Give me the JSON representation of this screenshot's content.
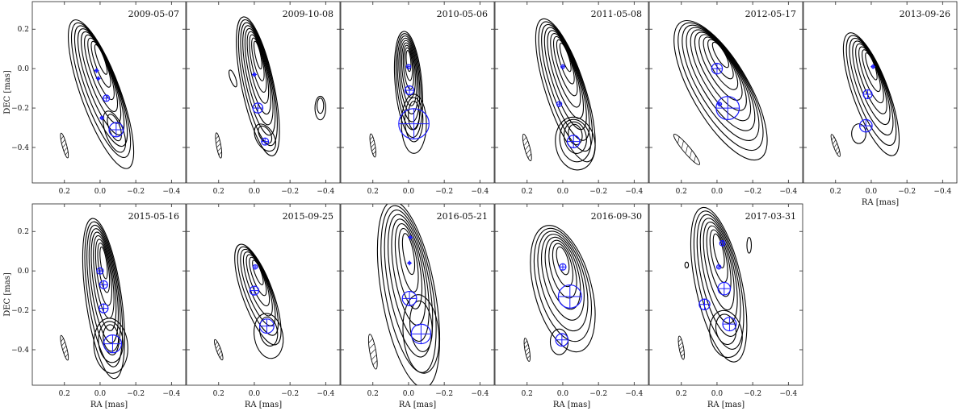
{
  "figure": {
    "ylabel": "DEC [mas]",
    "xlabel": "RA [mas]",
    "contour_color": "#000000",
    "component_color": "#1a1aff"
  },
  "chart_data": {
    "type": "contour",
    "x_axis": {
      "label": "RA [mas]",
      "range": [
        0.38,
        -0.48
      ],
      "ticks": [
        0.2,
        0.0,
        -0.2,
        -0.4
      ],
      "tick_labels": [
        "0.2",
        "0.0",
        "−0.2",
        "−0.4"
      ],
      "inverted": true
    },
    "y_axis": {
      "label": "DEC [mas]",
      "range": [
        -0.58,
        0.34
      ],
      "ticks": [
        -0.4,
        -0.2,
        0.0,
        0.2
      ],
      "tick_labels": [
        "−0.4",
        "−0.2",
        "0.0",
        "0.2"
      ]
    },
    "grid": false,
    "panels": [
      {
        "date": "2009-05-07",
        "beam": {
          "x": 0.2,
          "y": -0.39,
          "w": 0.025,
          "h": 0.13,
          "angle": -15
        },
        "contours": [
          {
            "cx": -0.005,
            "cy": -0.13,
            "w": 0.22,
            "h": 0.8,
            "angle": -20,
            "levels": 9
          },
          {
            "cx": -0.08,
            "cy": -0.32,
            "w": 0.1,
            "h": 0.22,
            "angle": -20,
            "levels": 2
          }
        ],
        "components": [
          {
            "x": 0.02,
            "y": -0.01,
            "r": 0.008
          },
          {
            "x": 0.01,
            "y": -0.05,
            "r": 0.006
          },
          {
            "x": -0.035,
            "y": -0.15,
            "r": 0.018
          },
          {
            "x": -0.01,
            "y": -0.25,
            "r": 0.008
          },
          {
            "x": -0.09,
            "y": -0.31,
            "r": 0.04
          }
        ]
      },
      {
        "date": "2009-10-08",
        "beam": {
          "x": 0.2,
          "y": -0.39,
          "w": 0.025,
          "h": 0.13,
          "angle": -10
        },
        "contours": [
          {
            "cx": -0.02,
            "cy": -0.09,
            "w": 0.18,
            "h": 0.72,
            "angle": -12,
            "levels": 9
          },
          {
            "cx": -0.06,
            "cy": -0.35,
            "w": 0.1,
            "h": 0.15,
            "angle": -30,
            "levels": 2
          },
          {
            "cx": -0.37,
            "cy": -0.2,
            "w": 0.06,
            "h": 0.12,
            "angle": 0,
            "levels": 2
          },
          {
            "cx": 0.12,
            "cy": -0.05,
            "w": 0.03,
            "h": 0.09,
            "angle": -20,
            "levels": 1
          }
        ],
        "components": [
          {
            "x": 0.0,
            "y": -0.03,
            "r": 0.008
          },
          {
            "x": -0.02,
            "y": -0.2,
            "r": 0.028
          },
          {
            "x": -0.06,
            "y": -0.37,
            "r": 0.02
          }
        ]
      },
      {
        "date": "2010-05-06",
        "beam": {
          "x": 0.2,
          "y": -0.39,
          "w": 0.025,
          "h": 0.12,
          "angle": -10
        },
        "contours": [
          {
            "cx": -0.0,
            "cy": -0.08,
            "w": 0.15,
            "h": 0.54,
            "angle": -5,
            "levels": 9
          },
          {
            "cx": -0.03,
            "cy": -0.28,
            "w": 0.14,
            "h": 0.3,
            "angle": 0,
            "levels": 3
          }
        ],
        "components": [
          {
            "x": 0.0,
            "y": 0.01,
            "r": 0.012
          },
          {
            "x": -0.005,
            "y": -0.11,
            "r": 0.025
          },
          {
            "x": -0.03,
            "y": -0.28,
            "r": 0.085
          }
        ]
      },
      {
        "date": "2011-05-08",
        "beam": {
          "x": 0.2,
          "y": -0.4,
          "w": 0.03,
          "h": 0.14,
          "angle": -15
        },
        "contours": [
          {
            "cx": -0.015,
            "cy": -0.11,
            "w": 0.22,
            "h": 0.76,
            "angle": -18,
            "levels": 9
          },
          {
            "cx": -0.07,
            "cy": -0.38,
            "w": 0.22,
            "h": 0.27,
            "angle": -10,
            "levels": 4
          }
        ],
        "components": [
          {
            "x": 0.0,
            "y": 0.01,
            "r": 0.01
          },
          {
            "x": 0.02,
            "y": -0.18,
            "r": 0.014
          },
          {
            "x": -0.06,
            "y": -0.37,
            "r": 0.035
          }
        ]
      },
      {
        "date": "2012-05-17",
        "beam": {
          "x": 0.17,
          "y": -0.41,
          "w": 0.04,
          "h": 0.2,
          "angle": -40
        },
        "contours": [
          {
            "cx": -0.02,
            "cy": -0.11,
            "w": 0.32,
            "h": 0.8,
            "angle": -30,
            "levels": 10
          }
        ],
        "components": [
          {
            "x": 0.0,
            "y": 0.0,
            "r": 0.03
          },
          {
            "x": -0.015,
            "y": -0.18,
            "r": 0.01
          },
          {
            "x": -0.06,
            "y": -0.2,
            "r": 0.065
          }
        ]
      },
      {
        "date": "2013-09-26",
        "beam": {
          "x": 0.2,
          "y": -0.39,
          "w": 0.025,
          "h": 0.12,
          "angle": -20
        },
        "contours": [
          {
            "cx": 0.0,
            "cy": -0.13,
            "w": 0.2,
            "h": 0.66,
            "angle": -20,
            "levels": 8
          },
          {
            "cx": 0.07,
            "cy": -0.33,
            "w": 0.08,
            "h": 0.1,
            "angle": 0,
            "levels": 1
          }
        ],
        "components": [
          {
            "x": -0.01,
            "y": 0.01,
            "r": 0.008
          },
          {
            "x": 0.02,
            "y": -0.13,
            "r": 0.025
          },
          {
            "x": 0.03,
            "y": -0.29,
            "r": 0.035
          }
        ]
      },
      {
        "date": "2015-05-16",
        "beam": {
          "x": 0.2,
          "y": -0.39,
          "w": 0.025,
          "h": 0.13,
          "angle": -15
        },
        "contours": [
          {
            "cx": -0.02,
            "cy": -0.14,
            "w": 0.2,
            "h": 0.82,
            "angle": -8,
            "levels": 9
          },
          {
            "cx": -0.06,
            "cy": -0.38,
            "w": 0.19,
            "h": 0.28,
            "angle": -5,
            "levels": 3
          }
        ],
        "components": [
          {
            "x": 0.0,
            "y": 0.0,
            "r": 0.018
          },
          {
            "x": -0.02,
            "y": -0.07,
            "r": 0.022
          },
          {
            "x": -0.02,
            "y": -0.19,
            "r": 0.025
          },
          {
            "x": -0.07,
            "y": -0.37,
            "r": 0.05
          }
        ]
      },
      {
        "date": "2015-09-25",
        "beam": {
          "x": 0.2,
          "y": -0.4,
          "w": 0.025,
          "h": 0.11,
          "angle": -20
        },
        "contours": [
          {
            "cx": -0.02,
            "cy": -0.12,
            "w": 0.17,
            "h": 0.54,
            "angle": -20,
            "levels": 7
          },
          {
            "cx": -0.08,
            "cy": -0.33,
            "w": 0.16,
            "h": 0.23,
            "angle": -10,
            "levels": 2
          }
        ],
        "components": [
          {
            "x": -0.005,
            "y": 0.02,
            "r": 0.012
          },
          {
            "x": 0.0,
            "y": -0.1,
            "r": 0.025
          },
          {
            "x": -0.07,
            "y": -0.28,
            "r": 0.04
          }
        ]
      },
      {
        "date": "2016-05-21",
        "beam": {
          "x": 0.2,
          "y": -0.41,
          "w": 0.035,
          "h": 0.18,
          "angle": -10
        },
        "contours": [
          {
            "cx": 0.0,
            "cy": -0.12,
            "w": 0.3,
            "h": 0.96,
            "angle": -10,
            "levels": 8
          },
          {
            "cx": -0.07,
            "cy": -0.32,
            "w": 0.2,
            "h": 0.4,
            "angle": -5,
            "levels": 2
          }
        ],
        "components": [
          {
            "x": -0.01,
            "y": 0.17,
            "r": 0.006
          },
          {
            "x": -0.005,
            "y": 0.04,
            "r": 0.006
          },
          {
            "x": -0.005,
            "y": -0.14,
            "r": 0.04
          },
          {
            "x": -0.07,
            "y": -0.32,
            "r": 0.055
          }
        ]
      },
      {
        "date": "2016-09-30",
        "beam": {
          "x": 0.2,
          "y": -0.4,
          "w": 0.025,
          "h": 0.12,
          "angle": -10
        },
        "contours": [
          {
            "cx": 0.0,
            "cy": -0.09,
            "w": 0.32,
            "h": 0.66,
            "angle": -15,
            "levels": 8
          },
          {
            "cx": 0.02,
            "cy": -0.36,
            "w": 0.1,
            "h": 0.13,
            "angle": 0,
            "levels": 1
          }
        ],
        "components": [
          {
            "x": 0.0,
            "y": 0.02,
            "r": 0.018
          },
          {
            "x": -0.04,
            "y": -0.13,
            "r": 0.065
          },
          {
            "x": 0.005,
            "y": -0.35,
            "r": 0.035
          }
        ]
      },
      {
        "date": "2017-03-31",
        "beam": {
          "x": 0.2,
          "y": -0.39,
          "w": 0.025,
          "h": 0.12,
          "angle": -10
        },
        "contours": [
          {
            "cx": -0.01,
            "cy": -0.07,
            "w": 0.26,
            "h": 0.8,
            "angle": -12,
            "levels": 8
          },
          {
            "cx": -0.05,
            "cy": -0.32,
            "w": 0.18,
            "h": 0.24,
            "angle": -10,
            "levels": 2
          },
          {
            "cx": -0.18,
            "cy": 0.13,
            "w": 0.025,
            "h": 0.08,
            "angle": 0,
            "levels": 1
          },
          {
            "cx": 0.17,
            "cy": 0.03,
            "w": 0.02,
            "h": 0.03,
            "angle": 0,
            "levels": 1
          }
        ],
        "components": [
          {
            "x": -0.03,
            "y": 0.14,
            "r": 0.015
          },
          {
            "x": -0.01,
            "y": 0.02,
            "r": 0.012
          },
          {
            "x": -0.04,
            "y": -0.09,
            "r": 0.035
          },
          {
            "x": 0.07,
            "y": -0.17,
            "r": 0.03
          },
          {
            "x": -0.07,
            "y": -0.27,
            "r": 0.038
          }
        ]
      }
    ]
  }
}
